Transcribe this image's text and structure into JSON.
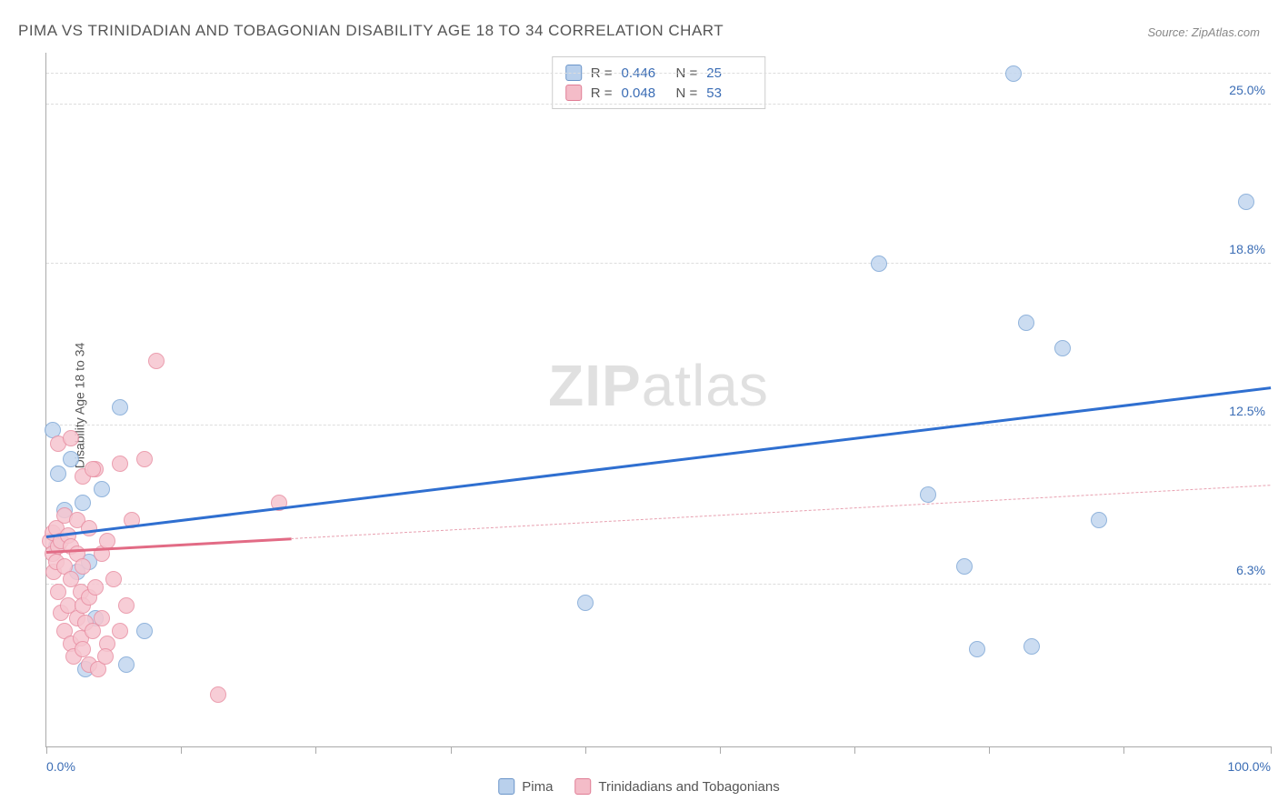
{
  "title": "PIMA VS TRINIDADIAN AND TOBAGONIAN DISABILITY AGE 18 TO 34 CORRELATION CHART",
  "source_prefix": "Source: ",
  "source": "ZipAtlas.com",
  "watermark": {
    "part1": "ZIP",
    "part2": "atlas"
  },
  "chart": {
    "type": "scatter",
    "ylabel": "Disability Age 18 to 34",
    "xlim": [
      0,
      100
    ],
    "ylim": [
      0,
      27
    ],
    "background_color": "#ffffff",
    "grid_color": "#dddddd",
    "axis_color": "#aaaaaa",
    "tick_label_color": "#3b6db5",
    "label_fontsize": 14,
    "title_fontsize": 17,
    "x_ticks": [
      0,
      11,
      22,
      33,
      44,
      55,
      66,
      77,
      88,
      100
    ],
    "x_tick_labels": [
      {
        "pos": 0,
        "label": "0.0%",
        "align": "left"
      },
      {
        "pos": 100,
        "label": "100.0%",
        "align": "right"
      }
    ],
    "y_ticks": [
      {
        "pos": 6.3,
        "label": "6.3%"
      },
      {
        "pos": 12.5,
        "label": "12.5%"
      },
      {
        "pos": 18.8,
        "label": "18.8%"
      },
      {
        "pos": 25.0,
        "label": "25.0%"
      }
    ],
    "y_gridlines": [
      6.3,
      12.5,
      18.8,
      25.0,
      26.2
    ],
    "stats_legend": {
      "r_label": "R =",
      "n_label": "N ="
    },
    "marker_radius": 9,
    "marker_stroke_width": 1,
    "series": [
      {
        "name": "Pima",
        "r": "0.446",
        "n": "25",
        "fill": "#c2d7ef",
        "stroke": "#7fa8d6",
        "swatch_fill": "#b9d0ec",
        "swatch_stroke": "#6b95c9",
        "trend": {
          "x1": 0,
          "y1": 8.2,
          "x2": 100,
          "y2": 14.0,
          "solid_until_x": 100,
          "color": "#2f6fd0",
          "width": 2.5
        },
        "points": [
          [
            0.5,
            12.3
          ],
          [
            0.8,
            7.8
          ],
          [
            1.0,
            10.6
          ],
          [
            1.5,
            9.2
          ],
          [
            2.0,
            11.2
          ],
          [
            2.5,
            6.8
          ],
          [
            3.0,
            9.5
          ],
          [
            3.2,
            3.0
          ],
          [
            3.5,
            7.2
          ],
          [
            4.0,
            5.0
          ],
          [
            4.5,
            10.0
          ],
          [
            6.0,
            13.2
          ],
          [
            6.5,
            3.2
          ],
          [
            8.0,
            4.5
          ],
          [
            44.0,
            5.6
          ],
          [
            68.0,
            18.8
          ],
          [
            72.0,
            9.8
          ],
          [
            75.0,
            7.0
          ],
          [
            76.0,
            3.8
          ],
          [
            79.0,
            26.2
          ],
          [
            80.0,
            16.5
          ],
          [
            80.5,
            3.9
          ],
          [
            83.0,
            15.5
          ],
          [
            86.0,
            8.8
          ],
          [
            98.0,
            21.2
          ]
        ]
      },
      {
        "name": "Trinidadians and Tobagonians",
        "r": "0.048",
        "n": "53",
        "fill": "#f6c5cf",
        "stroke": "#e88fa3",
        "swatch_fill": "#f4bcc8",
        "swatch_stroke": "#e07d95",
        "trend": {
          "x1": 0,
          "y1": 7.6,
          "x2": 100,
          "y2": 10.2,
          "solid_until_x": 20,
          "color": "#e26b85",
          "width": 2.5,
          "dash_color": "#e8a0b0"
        },
        "points": [
          [
            0.3,
            8.0
          ],
          [
            0.5,
            7.5
          ],
          [
            0.5,
            8.3
          ],
          [
            0.6,
            6.8
          ],
          [
            0.8,
            7.2
          ],
          [
            0.8,
            8.5
          ],
          [
            1.0,
            6.0
          ],
          [
            1.0,
            7.8
          ],
          [
            1.0,
            11.8
          ],
          [
            1.2,
            5.2
          ],
          [
            1.2,
            8.0
          ],
          [
            1.5,
            4.5
          ],
          [
            1.5,
            7.0
          ],
          [
            1.5,
            9.0
          ],
          [
            1.8,
            5.5
          ],
          [
            1.8,
            8.2
          ],
          [
            2.0,
            4.0
          ],
          [
            2.0,
            6.5
          ],
          [
            2.0,
            7.8
          ],
          [
            2.0,
            12.0
          ],
          [
            2.2,
            3.5
          ],
          [
            2.5,
            5.0
          ],
          [
            2.5,
            7.5
          ],
          [
            2.5,
            8.8
          ],
          [
            2.8,
            4.2
          ],
          [
            2.8,
            6.0
          ],
          [
            3.0,
            3.8
          ],
          [
            3.0,
            5.5
          ],
          [
            3.0,
            7.0
          ],
          [
            3.0,
            10.5
          ],
          [
            3.2,
            4.8
          ],
          [
            3.5,
            3.2
          ],
          [
            3.5,
            5.8
          ],
          [
            3.5,
            8.5
          ],
          [
            3.8,
            4.5
          ],
          [
            4.0,
            6.2
          ],
          [
            4.0,
            10.8
          ],
          [
            4.2,
            3.0
          ],
          [
            4.5,
            5.0
          ],
          [
            4.5,
            7.5
          ],
          [
            5.0,
            4.0
          ],
          [
            5.0,
            8.0
          ],
          [
            5.5,
            6.5
          ],
          [
            6.0,
            4.5
          ],
          [
            6.0,
            11.0
          ],
          [
            6.5,
            5.5
          ],
          [
            7.0,
            8.8
          ],
          [
            8.0,
            11.2
          ],
          [
            9.0,
            15.0
          ],
          [
            14.0,
            2.0
          ],
          [
            19.0,
            9.5
          ],
          [
            3.8,
            10.8
          ],
          [
            4.8,
            3.5
          ]
        ]
      }
    ]
  }
}
